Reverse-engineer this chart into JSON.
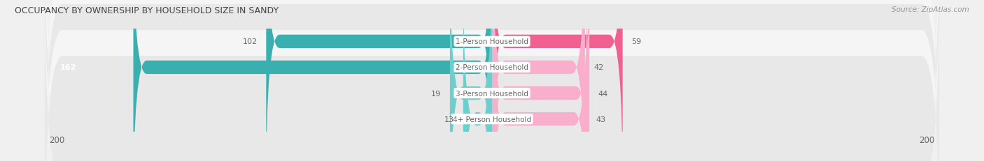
{
  "title": "OCCUPANCY BY OWNERSHIP BY HOUSEHOLD SIZE IN SANDY",
  "source": "Source: ZipAtlas.com",
  "categories": [
    "1-Person Household",
    "2-Person Household",
    "3-Person Household",
    "4+ Person Household"
  ],
  "owner_values": [
    102,
    162,
    19,
    13
  ],
  "renter_values": [
    59,
    42,
    44,
    43
  ],
  "max_val": 200,
  "owner_color_dark": "#3aafaf",
  "owner_color_light": "#6ecece",
  "renter_color_dark": "#f06090",
  "renter_color_light": "#f9aecb",
  "bg_color": "#f0f0f0",
  "row_bg_even": "#f5f5f5",
  "row_bg_odd": "#e8e8e8",
  "label_color": "#666666",
  "title_color": "#444444",
  "source_color": "#999999",
  "legend_owner_color": "#5bbfbf",
  "legend_renter_color": "#f48fb1"
}
